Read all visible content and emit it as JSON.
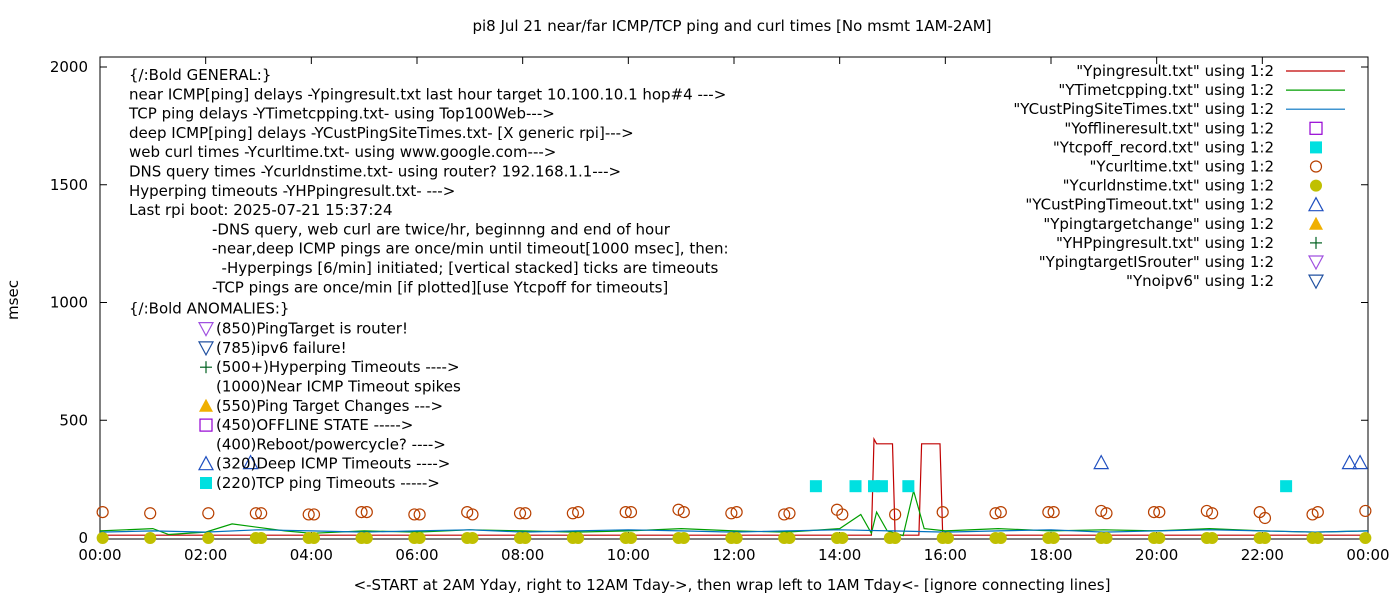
{
  "chart_data": {
    "type": "line",
    "title": "pi8 Jul 21  near/far ICMP/TCP ping and curl times [No msmt 1AM-2AM]",
    "xlabel": "<-START at 2AM Yday, right to 12AM Tday->, then wrap left to 1AM Tday<- [ignore connecting lines]",
    "ylabel": "msec",
    "xlim": [
      "00:00",
      "24:00"
    ],
    "ylim": [
      0,
      2050
    ],
    "x_ticks": [
      "00:00",
      "02:00",
      "04:00",
      "06:00",
      "08:00",
      "10:00",
      "12:00",
      "14:00",
      "16:00",
      "18:00",
      "20:00",
      "22:00",
      "00:00"
    ],
    "y_ticks": [
      0,
      500,
      1000,
      1500,
      2000
    ],
    "grid": false,
    "legend_position": "top-right",
    "legend": [
      {
        "label": "\"Ypingresult.txt\" using 1:2",
        "color": "#c00000",
        "symbol": "line"
      },
      {
        "label": "\"YTimetcpping.txt\" using 1:2",
        "color": "#009e00",
        "symbol": "line"
      },
      {
        "label": "\"YCustPingSiteTimes.txt\" using 1:2",
        "color": "#0072c0",
        "symbol": "line"
      },
      {
        "label": "\"Yofflineresult.txt\" using 1:2",
        "color": "#9400d3",
        "symbol": "open-square"
      },
      {
        "label": "\"Ytcpoff_record.txt\" using 1:2",
        "color": "#00e0e0",
        "symbol": "filled-square"
      },
      {
        "label": "\"Ycurltime.txt\" using 1:2",
        "color": "#b84000",
        "symbol": "open-circle"
      },
      {
        "label": "\"Ycurldnstime.txt\" using 1:2",
        "color": "#c0c000",
        "symbol": "filled-circle"
      },
      {
        "label": "\"YCustPingTimeout.txt\" using 1:2",
        "color": "#2050c0",
        "symbol": "open-triangle-up"
      },
      {
        "label": "\"Ypingtargetchange\" using 1:2",
        "color": "#f0b000",
        "symbol": "filled-triangle-up"
      },
      {
        "label": "\"YHPpingresult.txt\" using 1:2",
        "color": "#006020",
        "symbol": "plus"
      },
      {
        "label": "\"YpingtargetISrouter\" using 1:2",
        "color": "#a050e0",
        "symbol": "open-triangle-down"
      },
      {
        "label": "\"Ynoipv6\" using 1:2",
        "color": "#2050a0",
        "symbol": "open-triangle-down"
      }
    ],
    "annotations": {
      "general": [
        "{/:Bold GENERAL:}",
        "near ICMP[ping] delays -Ypingresult.txt last hour target 10.100.10.1 hop#4 --->",
        "TCP ping delays -YTimetcpping.txt- using Top100Web--->",
        "deep ICMP[ping] delays -YCustPingSiteTimes.txt- [X generic rpi]--->",
        "web curl times -Ycurltime.txt- using www.google.com--->",
        "DNS query times -Ycurldnstime.txt- using router? 192.168.1.1--->",
        "Hyperping timeouts -YHPpingresult.txt- --->",
        "Last rpi boot: 2025-07-21 15:37:24"
      ],
      "notes": [
        "-DNS query, web curl are twice/hr, beginnng and end of hour",
        "-near,deep ICMP pings are once/min until timeout[1000 msec], then:",
        "  -Hyperpings [6/min] initiated; [vertical stacked] ticks are timeouts",
        "-TCP pings are once/min [if plotted][use Ytcpoff for timeouts]"
      ],
      "anomalies_title": "{/:Bold ANOMALIES:}",
      "anomalies": [
        {
          "symbol": "open-triangle-down",
          "color": "#a050e0",
          "text": "(850)PingTarget is router!"
        },
        {
          "symbol": "open-triangle-down",
          "color": "#2050a0",
          "text": "(785)ipv6 failure!"
        },
        {
          "symbol": "plus",
          "color": "#006020",
          "text": "(500+)Hyperping Timeouts ---->"
        },
        {
          "symbol": "none",
          "color": "#000000",
          "text": "(1000)Near ICMP Timeout spikes"
        },
        {
          "symbol": "filled-triangle-up",
          "color": "#f0b000",
          "text": "(550)Ping Target Changes --->"
        },
        {
          "symbol": "open-square",
          "color": "#9400d3",
          "text": "(450)OFFLINE STATE ----->"
        },
        {
          "symbol": "none",
          "color": "#000000",
          "text": "(400)Reboot/powercycle? ---->"
        },
        {
          "symbol": "open-triangle-up",
          "color": "#2050c0",
          "text": "(320)Deep ICMP Timeouts ---->"
        },
        {
          "symbol": "filled-square",
          "color": "#00e0e0",
          "text": "(220)TCP ping Timeouts ----->"
        }
      ]
    },
    "series": [
      {
        "name": "\"Ypingresult.txt\" using 1:2",
        "color": "#c00000",
        "x": [
          0,
          13.5,
          14.6,
          14.65,
          14.7,
          15.0,
          15.05,
          15.5,
          15.55,
          15.6,
          15.9,
          15.95,
          24
        ],
        "y": [
          12,
          12,
          12,
          420,
          400,
          400,
          12,
          12,
          400,
          400,
          400,
          12,
          12
        ]
      },
      {
        "name": "\"YTimetcpping.txt\" using 1:2",
        "color": "#009e00",
        "x": [
          0,
          1.0,
          1.3,
          2.0,
          2.5,
          3.5,
          4.0,
          5.0,
          6.0,
          7.0,
          8.0,
          9.0,
          10.0,
          11.0,
          12.0,
          13.0,
          14.0,
          14.4,
          14.6,
          14.7,
          14.9,
          15.2,
          15.4,
          15.6,
          16.0,
          17.0,
          18.0,
          19.0,
          20.0,
          21.0,
          22.0,
          23.0,
          24
        ],
        "y": [
          30,
          40,
          15,
          25,
          60,
          30,
          20,
          30,
          25,
          35,
          30,
          25,
          30,
          40,
          30,
          25,
          40,
          100,
          20,
          110,
          30,
          10,
          200,
          40,
          30,
          40,
          30,
          35,
          30,
          40,
          30,
          25,
          30
        ]
      },
      {
        "name": "\"YCustPingSiteTimes.txt\" using 1:2",
        "color": "#0072c0",
        "x": [
          0,
          1,
          2,
          3,
          4,
          5,
          6,
          7,
          8,
          9,
          10,
          11,
          12,
          13,
          14,
          15,
          16,
          17,
          18,
          19,
          20,
          21,
          22,
          23,
          24
        ],
        "y": [
          25,
          30,
          25,
          35,
          30,
          25,
          30,
          35,
          25,
          30,
          35,
          30,
          25,
          30,
          35,
          30,
          25,
          30,
          35,
          25,
          30,
          35,
          30,
          25,
          30
        ]
      },
      {
        "name": "\"Ycurltime.txt\" using 1:2",
        "color": "#b84000",
        "symbol": "open-circle",
        "x": [
          0.05,
          0.95,
          2.05,
          2.95,
          3.05,
          3.95,
          4.05,
          4.95,
          5.05,
          5.95,
          6.05,
          6.95,
          7.05,
          7.95,
          8.05,
          8.95,
          9.05,
          9.95,
          10.05,
          10.95,
          11.05,
          11.95,
          12.05,
          12.95,
          13.05,
          13.95,
          14.05,
          15.05,
          15.95,
          16.95,
          17.05,
          17.95,
          18.05,
          18.95,
          19.05,
          19.95,
          20.05,
          20.95,
          21.05,
          21.95,
          22.05,
          22.95,
          23.05,
          23.95
        ],
        "y": [
          110,
          105,
          105,
          105,
          105,
          100,
          100,
          110,
          110,
          100,
          100,
          110,
          100,
          105,
          105,
          105,
          110,
          110,
          110,
          120,
          110,
          105,
          110,
          100,
          105,
          120,
          100,
          100,
          110,
          105,
          110,
          110,
          110,
          115,
          105,
          110,
          110,
          115,
          105,
          110,
          85,
          100,
          110,
          115
        ]
      },
      {
        "name": "\"Ycurldnstime.txt\" using 1:2",
        "color": "#c0c000",
        "symbol": "filled-circle",
        "x": [
          0.05,
          0.95,
          2.05,
          2.95,
          3.05,
          3.95,
          4.05,
          4.95,
          5.05,
          5.95,
          6.05,
          6.95,
          7.05,
          7.95,
          8.05,
          8.95,
          9.05,
          9.95,
          10.05,
          10.95,
          11.05,
          11.95,
          12.05,
          12.95,
          13.05,
          13.95,
          14.05,
          14.95,
          15.05,
          15.95,
          16.05,
          16.95,
          17.05,
          17.95,
          18.05,
          18.95,
          19.05,
          19.95,
          20.05,
          20.95,
          21.05,
          21.95,
          22.05,
          22.95,
          23.05,
          23.95
        ],
        "y": [
          0,
          0,
          0,
          0,
          0,
          0,
          0,
          0,
          0,
          0,
          0,
          0,
          0,
          0,
          0,
          0,
          0,
          0,
          0,
          0,
          0,
          0,
          0,
          0,
          0,
          0,
          0,
          0,
          0,
          0,
          0,
          0,
          0,
          0,
          0,
          0,
          0,
          0,
          0,
          0,
          0,
          0,
          0,
          0,
          0,
          0
        ]
      },
      {
        "name": "\"Ytcpoff_record.txt\" using 1:2",
        "color": "#00e0e0",
        "symbol": "filled-square",
        "x": [
          13.55,
          14.3,
          14.65,
          14.8,
          15.3,
          22.45
        ],
        "y": [
          220,
          220,
          220,
          220,
          220,
          220
        ]
      },
      {
        "name": "\"YCustPingTimeout.txt\" using 1:2",
        "color": "#2050c0",
        "symbol": "open-triangle-up",
        "x": [
          2.85,
          18.95,
          23.65,
          23.85
        ],
        "y": [
          320,
          320,
          320,
          320
        ]
      }
    ]
  }
}
